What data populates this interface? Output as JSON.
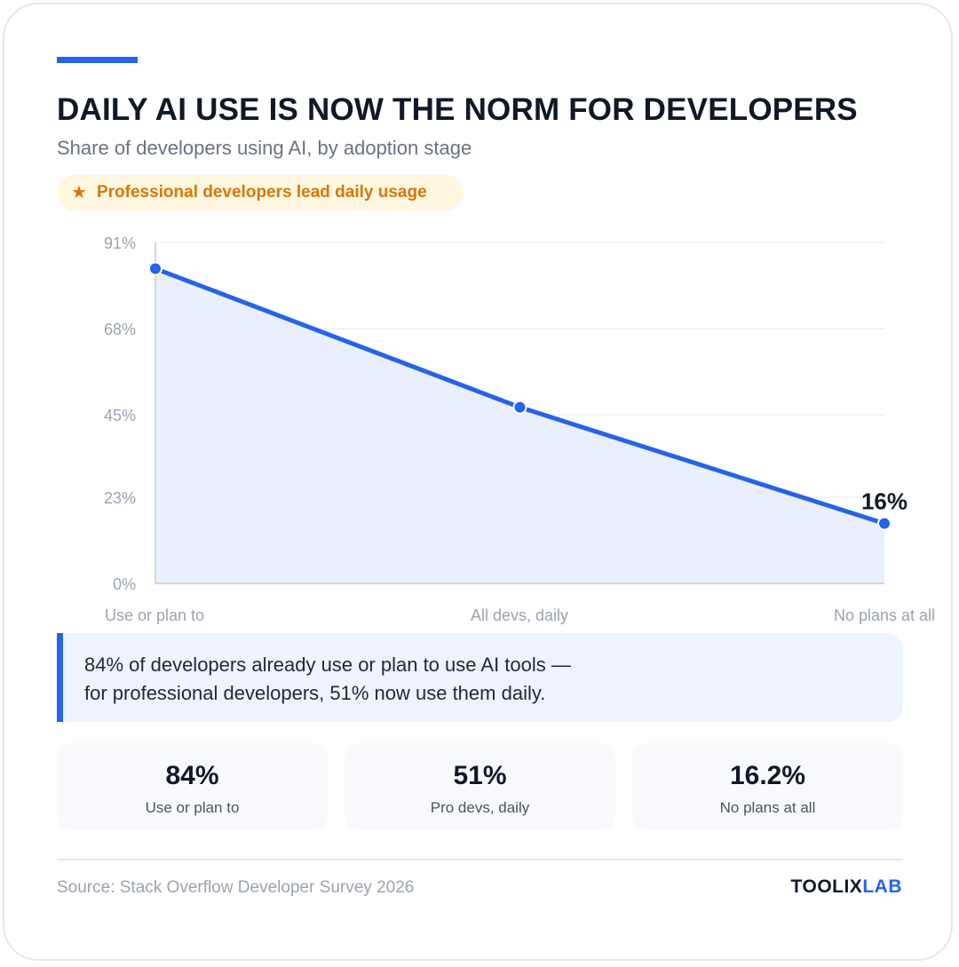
{
  "header": {
    "title": "DAILY AI USE IS NOW THE NORM FOR DEVELOPERS",
    "subtitle": "Share of developers using AI, by adoption stage",
    "badge_icon": "star-icon",
    "badge_text": "Professional developers lead daily usage"
  },
  "colors": {
    "accent": "#2563eb",
    "badge_text": "#d97706",
    "badge_bg": "#fff7e0",
    "area_fill": "#e9effc"
  },
  "chart_data": {
    "type": "area",
    "categories": [
      "Use or plan to",
      "All devs, daily",
      "No plans at all"
    ],
    "values": [
      84,
      47,
      16
    ],
    "ylim": [
      0,
      91
    ],
    "yticks": [
      0,
      23,
      45,
      68,
      91
    ],
    "ytick_labels": [
      "0%",
      "23%",
      "45%",
      "68%",
      "91%"
    ],
    "data_labels": [
      {
        "index": 2,
        "text": "16%"
      }
    ],
    "grid": true,
    "legend": "none"
  },
  "callout": {
    "line1": "84% of developers already use or plan to use AI tools —",
    "line2": "for professional developers, 51% now use them daily."
  },
  "stats": [
    {
      "value": "84%",
      "label": "Use or plan to"
    },
    {
      "value": "51%",
      "label": "Pro devs, daily"
    },
    {
      "value": "16.2%",
      "label": "No plans at all"
    }
  ],
  "footer": {
    "source": "Source: Stack Overflow Developer Survey 2026",
    "brand_part1": "TOOLIX",
    "brand_part2": "LAB"
  }
}
